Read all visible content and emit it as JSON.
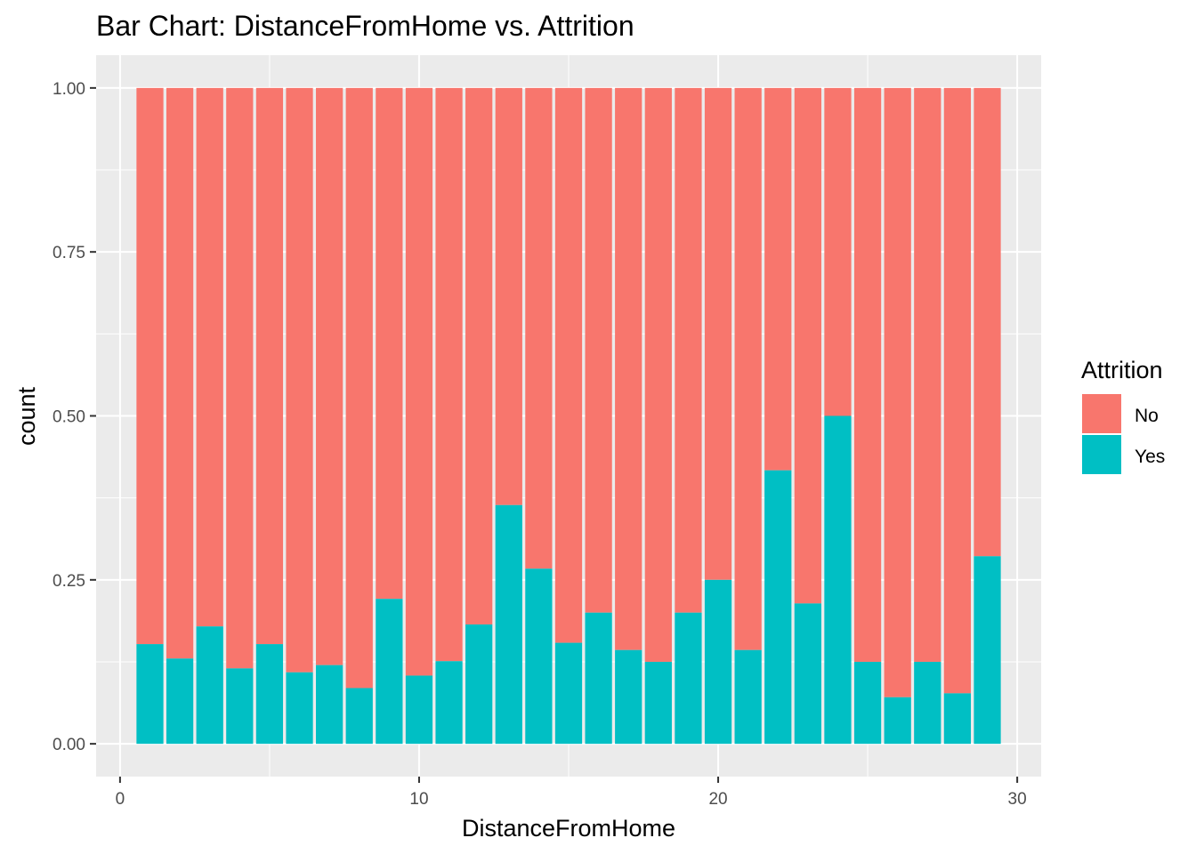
{
  "chart_data": {
    "type": "bar",
    "stacked": true,
    "title": "Bar Chart: DistanceFromHome vs. Attrition",
    "xlabel": "DistanceFromHome",
    "ylabel": "count",
    "xlim": [
      -0.8,
      30.8
    ],
    "ylim": [
      -0.05,
      1.05
    ],
    "x_ticks": [
      0,
      10,
      20,
      30
    ],
    "x_tick_labels": [
      "0",
      "10",
      "20",
      "30"
    ],
    "y_ticks": [
      0,
      0.25,
      0.5,
      0.75,
      1.0
    ],
    "y_tick_labels": [
      "0.00",
      "0.25",
      "0.50",
      "0.75",
      "1.00"
    ],
    "grid": true,
    "legend": {
      "title": "Attrition",
      "position": "right"
    },
    "x": [
      1,
      2,
      3,
      4,
      5,
      6,
      7,
      8,
      9,
      10,
      11,
      12,
      13,
      14,
      15,
      16,
      17,
      18,
      19,
      20,
      21,
      22,
      23,
      24,
      25,
      26,
      27,
      28,
      29
    ],
    "series": [
      {
        "name": "No",
        "color": "#F8766D",
        "values": [
          0.848,
          0.87,
          0.821,
          0.885,
          0.848,
          0.891,
          0.88,
          0.915,
          0.779,
          0.896,
          0.874,
          0.818,
          0.636,
          0.733,
          0.846,
          0.8,
          0.857,
          0.875,
          0.8,
          0.75,
          0.857,
          0.583,
          0.786,
          0.5,
          0.875,
          0.929,
          0.875,
          0.923,
          0.714
        ]
      },
      {
        "name": "Yes",
        "color": "#00BFC4",
        "values": [
          0.152,
          0.13,
          0.179,
          0.115,
          0.152,
          0.109,
          0.12,
          0.085,
          0.221,
          0.104,
          0.126,
          0.182,
          0.364,
          0.267,
          0.154,
          0.2,
          0.143,
          0.125,
          0.2,
          0.25,
          0.143,
          0.417,
          0.214,
          0.5,
          0.125,
          0.071,
          0.125,
          0.077,
          0.286
        ]
      }
    ]
  }
}
